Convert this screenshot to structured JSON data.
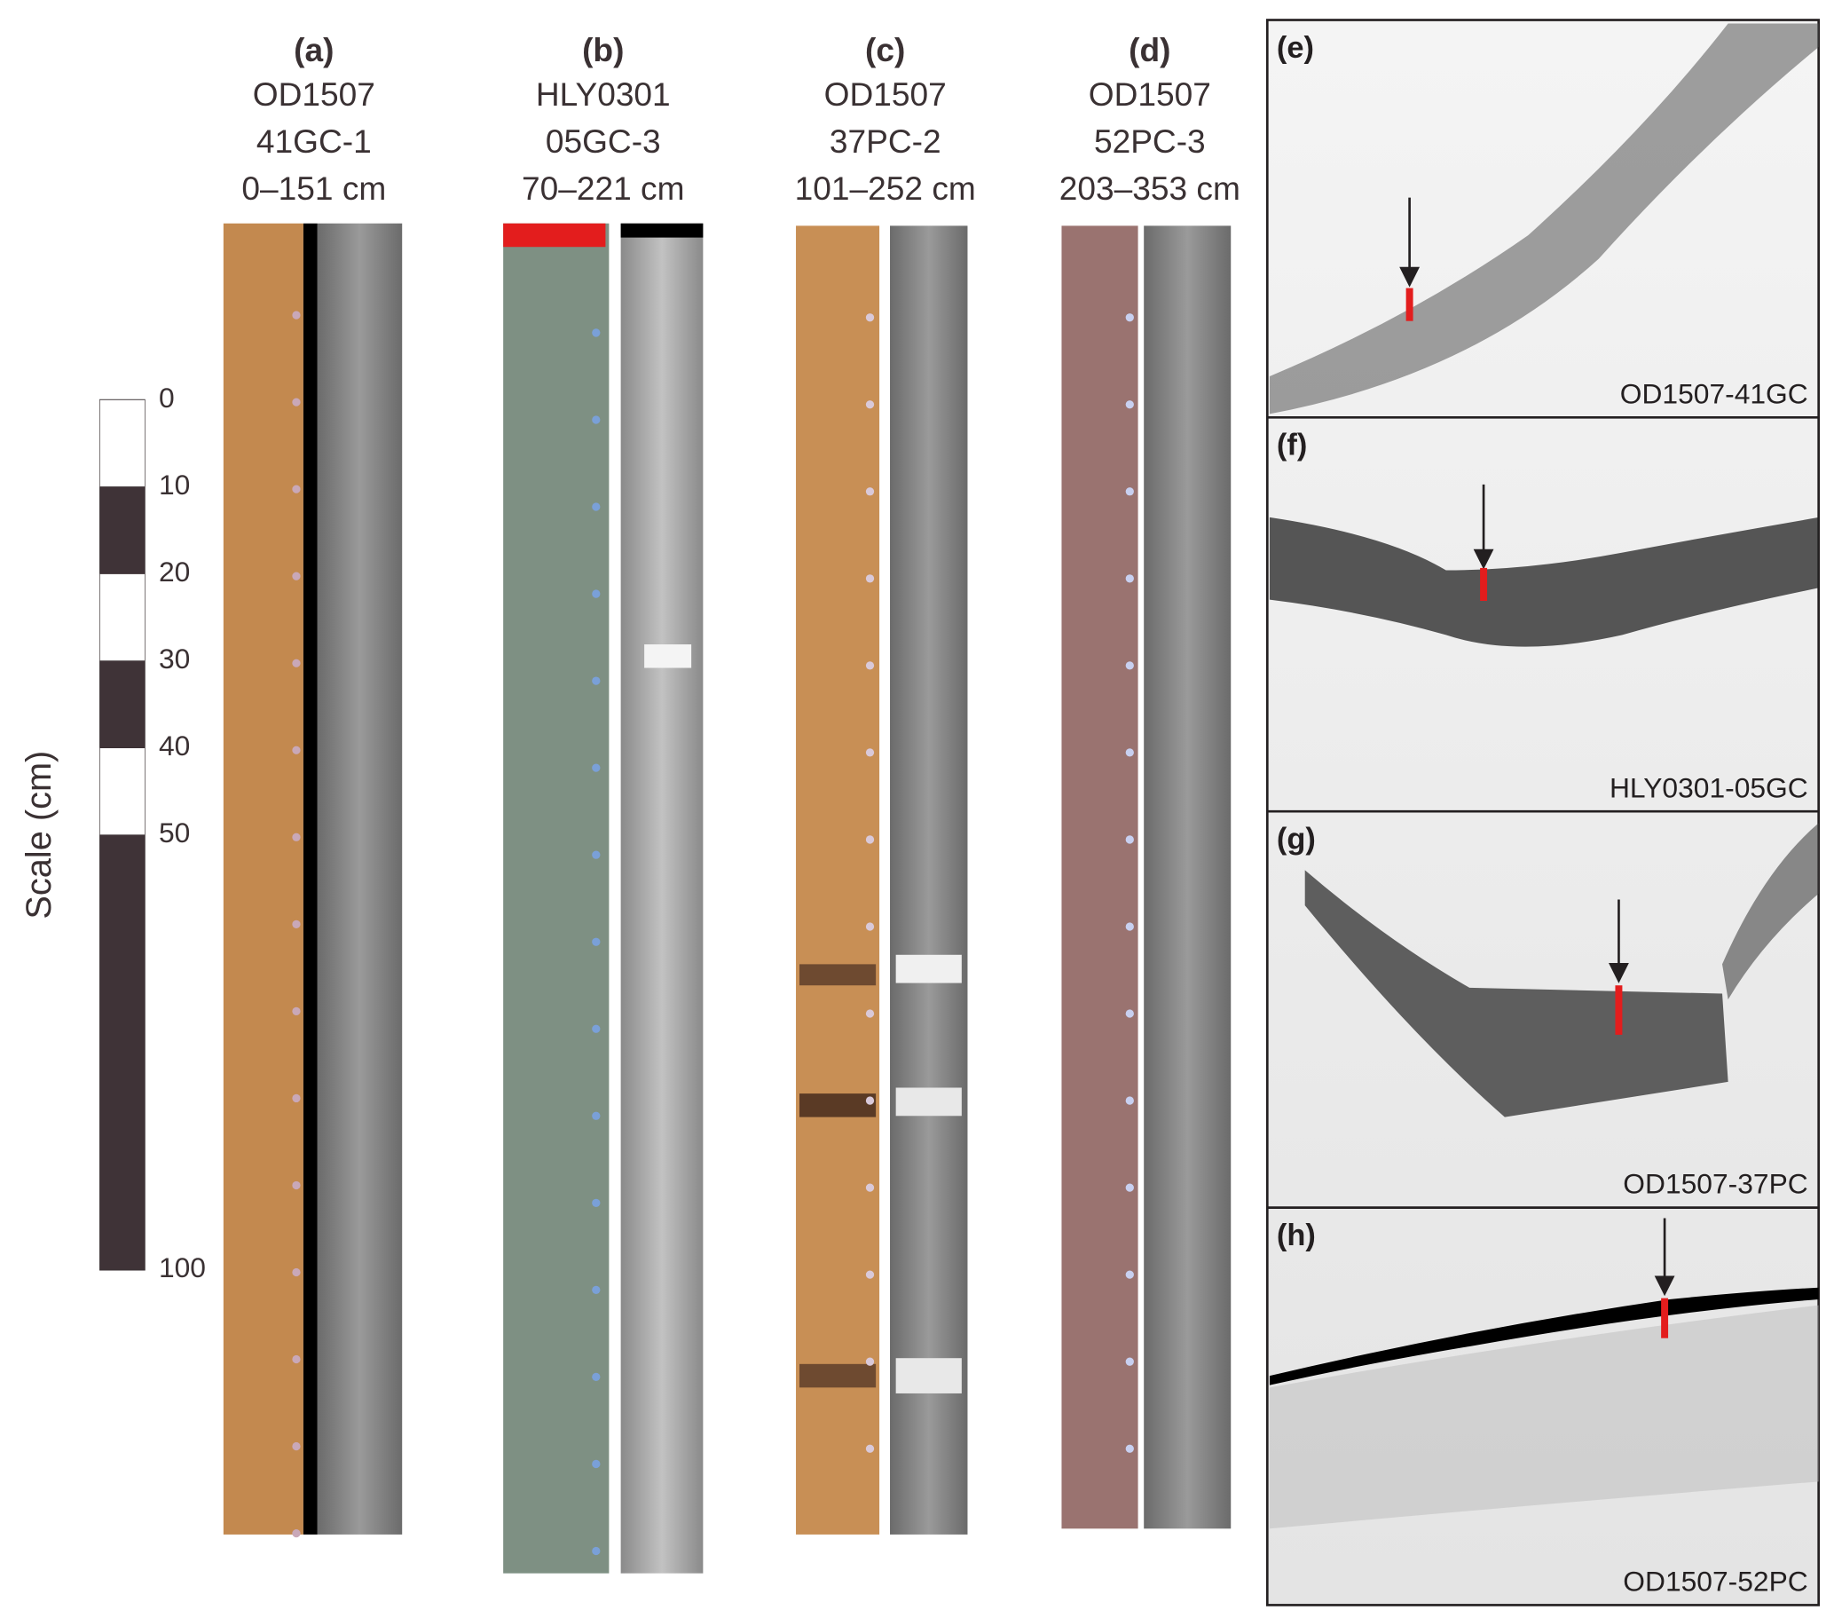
{
  "panels": [
    {
      "letter": "(a)",
      "cruise": "OD1507",
      "core": "41GC-1",
      "interval": "0–151 cm"
    },
    {
      "letter": "(b)",
      "cruise": "HLY0301",
      "core": "05GC-3",
      "interval": "70–221 cm"
    },
    {
      "letter": "(c)",
      "cruise": "OD1507",
      "core": "37PC-2",
      "interval": "101–252 cm"
    },
    {
      "letter": "(d)",
      "cruise": "OD1507",
      "core": "52PC-3",
      "interval": "203–353 cm"
    }
  ],
  "scale_bar": {
    "label": "Scale (cm)",
    "ylim": [
      0,
      100
    ],
    "ticks": [
      0,
      10,
      20,
      30,
      40,
      50,
      100
    ]
  },
  "profiles": [
    {
      "letter": "(e)",
      "site": "OD1507-41GC"
    },
    {
      "letter": "(f)",
      "site": "HLY0301-05GC"
    },
    {
      "letter": "(g)",
      "site": "OD1507-37PC"
    },
    {
      "letter": "(h)",
      "site": "OD1507-52PC"
    }
  ]
}
